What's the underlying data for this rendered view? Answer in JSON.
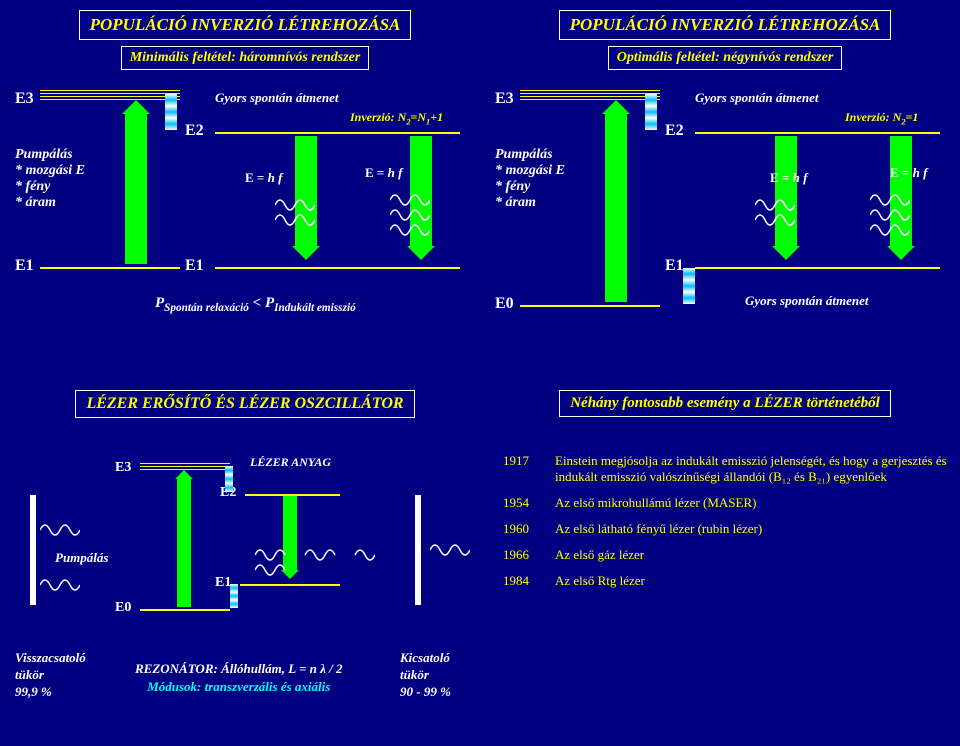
{
  "c": {
    "bg": "#000080",
    "yel": "#ffff00",
    "wht": "#ffffff",
    "grn": "#00ff00",
    "cyan": "#00ffff"
  },
  "q1": {
    "title": "POPULÁCIÓ INVERZIÓ LÉTREHOZÁSA",
    "subtitle": "Minimális feltétel: háromnívós rendszer",
    "E3": "E3",
    "E2": "E2",
    "E1": "E1",
    "E1b": "E1",
    "pump": "Pumpálás",
    "pump1": "* mozgási E",
    "pump2": "* fény",
    "pump3": "* áram",
    "trans": "Gyors spontán átmenet",
    "inv": "Inverzió: N",
    "inv2": "=N",
    "inv3": "+1",
    "ehf": "E = h f",
    "ehf2": "E = h f",
    "prel": "P",
    "prel2": "Spontán relaxáció",
    "lt": " < ",
    "pind": "P",
    "pind2": "Indukált emisszió"
  },
  "q2": {
    "title": "POPULÁCIÓ INVERZIÓ LÉTREHOZÁSA",
    "subtitle": "Optimális feltétel: négynívós rendszer",
    "E3": "E3",
    "E2": "E2",
    "E1": "E1",
    "E0": "E0",
    "pump": "Pumpálás",
    "pump1": "* mozgási E",
    "pump2": "* fény",
    "pump3": "* áram",
    "trans": "Gyors spontán átmenet",
    "inv": "Inverzió: N",
    "inv3": "=1",
    "ehf": "E = h f",
    "ehf2": "E = h f",
    "last": "Gyors spontán átmenet"
  },
  "q3": {
    "title": "LÉZER ERŐSÍTŐ ÉS LÉZER OSZCILLÁTOR",
    "E3": "E3",
    "E2": "E2",
    "E1": "E1",
    "E0": "E0",
    "pump": "Pumpálás",
    "lanyag": "LÉZER ANYAG",
    "vissza": "Visszacsatoló",
    "tukor": "tükör",
    "p99": "99,9 %",
    "rezon": "REZONÁTOR:  Állóhullám, L = n λ / 2",
    "modus": "Módusok: transzverzális és axiális",
    "kics": "Kicsatoló",
    "tukor2": "tükör",
    "p90": "90 - 99 %"
  },
  "q4": {
    "title": "Néhány fontosabb esemény a LÉZER történetéből",
    "events": [
      {
        "y": "1917",
        "t": "Einstein megjósolja az indukált emisszió jelenségét, és hogy a gerjesztés és indukált emisszió valószínűségi állandói (B₁₂ és B₂₁) egyenlőek"
      },
      {
        "y": "1954",
        "t": "Az első mikrohullámú lézer (MASER)"
      },
      {
        "y": "1960",
        "t": "Az első látható fényű lézer (rubin lézer)"
      },
      {
        "y": "1966",
        "t": "Az első gáz lézer"
      },
      {
        "y": "1984",
        "t": "Az első Rtg lézer"
      }
    ]
  }
}
